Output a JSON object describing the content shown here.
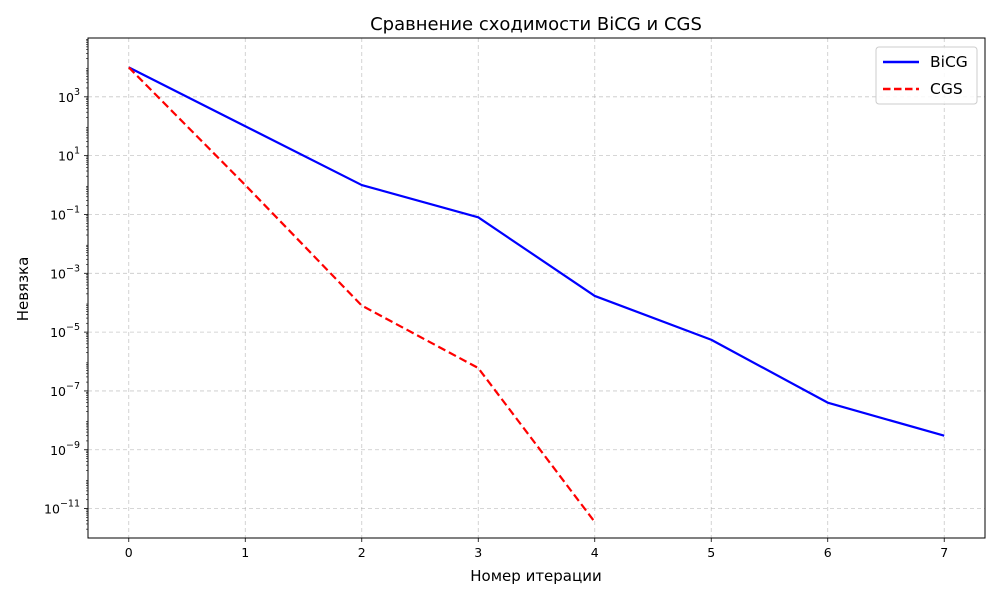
{
  "chart_data": {
    "type": "line",
    "title": "Сравнение сходимости BiCG и CGS",
    "xlabel": "Номер итерации",
    "ylabel": "Невязка",
    "yscale": "log",
    "xlim": [
      -0.35,
      7.35
    ],
    "ylim": [
      1e-12,
      100000.0
    ],
    "grid": true,
    "legend_position": "top-right",
    "xticks": [
      0,
      1,
      2,
      3,
      4,
      5,
      6,
      7
    ],
    "xtick_labels": [
      "0",
      "1",
      "2",
      "3",
      "4",
      "5",
      "6",
      "7"
    ],
    "ytick_exponents": [
      3,
      1,
      -1,
      -3,
      -5,
      -7,
      -9,
      -11
    ],
    "ytick_base": "10",
    "series": [
      {
        "name": "BiCG",
        "color": "#0000ff",
        "style": "solid",
        "x": [
          0,
          1,
          2,
          3,
          4,
          5,
          6,
          7
        ],
        "y": [
          10000,
          100,
          1,
          0.08,
          0.00017,
          5.5e-06,
          4e-08,
          3e-09
        ]
      },
      {
        "name": "CGS",
        "color": "#ff0000",
        "style": "dashed",
        "x": [
          0,
          1,
          2,
          3,
          4
        ],
        "y": [
          10000,
          1,
          8e-05,
          6e-07,
          3.5e-12
        ]
      }
    ]
  }
}
